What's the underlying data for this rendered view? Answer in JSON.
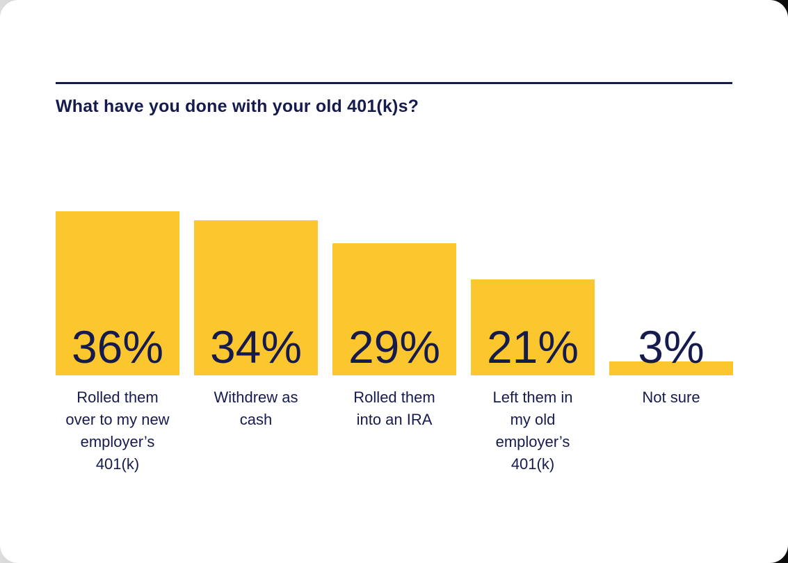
{
  "colors": {
    "bar_yellow": "#FCC62E",
    "navy_text": "#161B4D",
    "card_background": "#FFFFFF"
  },
  "chart_data": {
    "type": "bar",
    "orientation": "vertical",
    "title": "What have you done with your old 401(k)s?",
    "categories": [
      "Rolled them over to my new employer’s 401(k)",
      "Withdrew as cash",
      "Rolled them into an IRA",
      "Left them in my old employer’s 401(k)",
      "Not sure"
    ],
    "categories_wrapped": [
      "Rolled them\nover to my new\nemployer’s\n401(k)",
      "Withdrew as\ncash",
      "Rolled them\ninto an IRA",
      "Left them in\nmy old\nemployer’s\n401(k)",
      "Not sure"
    ],
    "values": [
      36,
      34,
      29,
      21,
      3
    ],
    "value_labels": [
      "36%",
      "34%",
      "29%",
      "21%",
      "3%"
    ],
    "unit": "%",
    "ylim": [
      0,
      36
    ],
    "bar_color": "#FCC62E",
    "text_color": "#161B4D",
    "grid": false,
    "legend": false,
    "xlabel": "",
    "ylabel": ""
  }
}
